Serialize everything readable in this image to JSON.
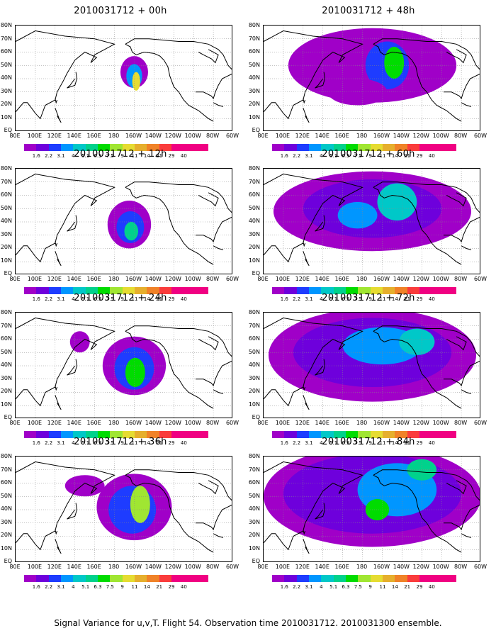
{
  "caption": "Signal Variance for u,v,T. Flight 54. Observation time 2010031712. 2010031300 ensemble.",
  "panels": [
    {
      "title": "2010031712 + 00h",
      "spread": 0
    },
    {
      "title": "2010031712 + 12h",
      "spread": 1
    },
    {
      "title": "2010031712 + 24h",
      "spread": 2
    },
    {
      "title": "2010031712 + 36h",
      "spread": 3
    },
    {
      "title": "2010031712 + 48h",
      "spread": 4
    },
    {
      "title": "2010031712 + 60h",
      "spread": 5
    },
    {
      "title": "2010031712 + 72h",
      "spread": 6
    },
    {
      "title": "2010031712 + 84h",
      "spread": 7
    }
  ],
  "lat_labels": [
    "80N",
    "70N",
    "60N",
    "50N",
    "40N",
    "30N",
    "20N",
    "10N",
    "EQ"
  ],
  "lon_labels": [
    "80E",
    "100E",
    "120E",
    "140E",
    "160E",
    "180",
    "160W",
    "140W",
    "120W",
    "100W",
    "80W",
    "60W"
  ],
  "colorbar": {
    "labels": [
      "1.6",
      "2.2",
      "3.1",
      "4",
      "5.1",
      "6.3",
      "7.5",
      "9",
      "11",
      "14",
      "21",
      "29",
      "40"
    ],
    "colors": [
      "#a000c8",
      "#6e00dc",
      "#1e3cff",
      "#0096ff",
      "#00c8c8",
      "#00d28c",
      "#00dc00",
      "#a0e632",
      "#e6dc32",
      "#e6af2d",
      "#f08228",
      "#fa3c3c",
      "#f00082"
    ]
  }
}
